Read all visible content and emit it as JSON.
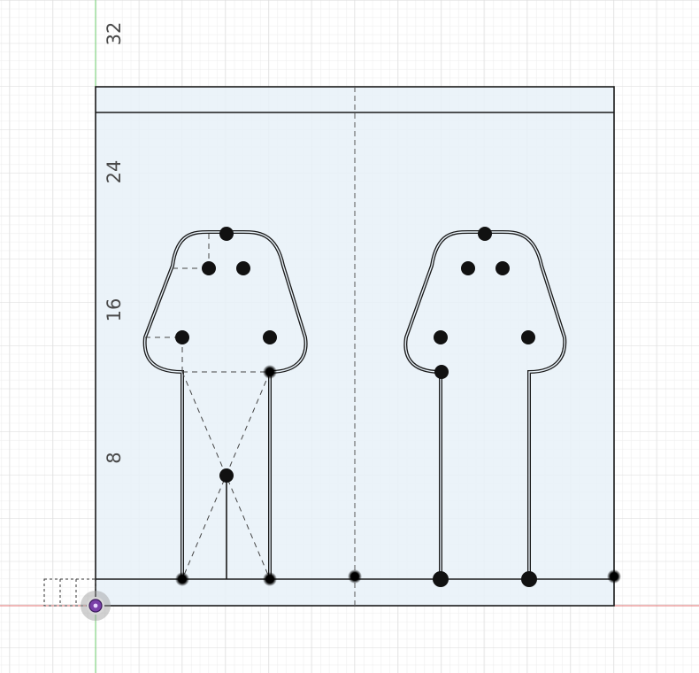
{
  "app": {
    "view": "Sketch canvas",
    "description_color": {
      "grid_minor": "#ececec",
      "grid_major": "#dadada",
      "sketch_fill": "#e8f1f8",
      "stroke": "#1a1a1a",
      "x_axis": "#e07070",
      "y_axis": "#6fcf6f",
      "origin": "#7a3fa8"
    }
  },
  "ruler": {
    "labels": [
      "32",
      "24",
      "16",
      "8"
    ]
  },
  "sketch": {
    "profiles": [
      "left-keyhole",
      "right-keyhole"
    ],
    "constraint_points": 20
  },
  "icons": {
    "origin": "origin-icon",
    "constraint": "constraint-point-icon"
  }
}
